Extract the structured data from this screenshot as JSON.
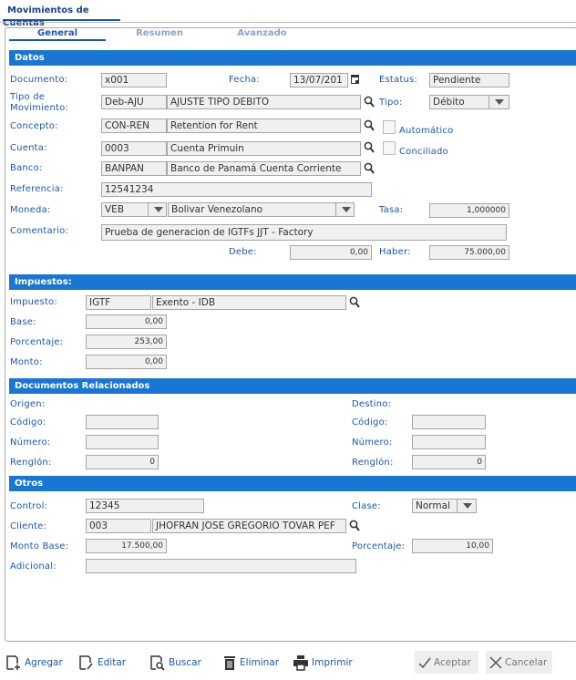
{
  "window": {
    "tab": "Movimientos de Cuentas"
  },
  "tabs": [
    {
      "label": "General",
      "active": true
    },
    {
      "label": "Resumen"
    },
    {
      "label": "Avanzado"
    }
  ],
  "datos": {
    "title": "Datos",
    "documento": {
      "label": "Documento:",
      "value": "x001"
    },
    "fecha": {
      "label": "Fecha:",
      "value": "13/07/201"
    },
    "estatus": {
      "label": "Estatus:",
      "value": "Pendiente"
    },
    "tipo_mov": {
      "label1": "Tipo de",
      "label2": "Movimiento:",
      "code": "Deb-AJU",
      "desc": "AJUSTE TIPO DEBITO"
    },
    "tipo": {
      "label": "Tipo:",
      "value": "Débito"
    },
    "concepto": {
      "label": "Concepto:",
      "code": "CON-REN",
      "desc": "Retention for Rent"
    },
    "automatico": {
      "label": "Automático",
      "checked": false
    },
    "cuenta": {
      "label": "Cuenta:",
      "code": "0003",
      "desc": "Cuenta Primuin"
    },
    "conciliado": {
      "label": "Conciliado",
      "checked": false
    },
    "banco": {
      "label": "Banco:",
      "code": "BANPAN",
      "desc": "Banco de Panamá Cuenta Corriente"
    },
    "referencia": {
      "label": "Referencia:",
      "value": "12541234"
    },
    "moneda": {
      "label": "Moneda:",
      "code": "VEB",
      "desc": "Bolivar Venezolano"
    },
    "tasa": {
      "label": "Tasa:",
      "value": "1,000000"
    },
    "comentario": {
      "label": "Comentario:",
      "value": "Prueba de generacion de IGTFs JJT - Factory"
    },
    "debe": {
      "label": "Debe:",
      "value": "0,00"
    },
    "haber": {
      "label": "Haber:",
      "value": "75.000,00"
    }
  },
  "impuestos": {
    "title": "Impuestos:",
    "impuesto": {
      "label": "Impuesto:",
      "code": "IGTF",
      "desc": "Exento - IDB"
    },
    "base": {
      "label": "Base:",
      "value": "0,00"
    },
    "porcentaje": {
      "label": "Porcentaje:",
      "value": "253,00"
    },
    "monto": {
      "label": "Monto:",
      "value": "0,00"
    }
  },
  "docs": {
    "title": "Documentos Relacionados",
    "origen": "Origen:",
    "destino": "Destino:",
    "codigo": "Código:",
    "numero": "Número:",
    "renglon": "Renglón:",
    "origen_codigo": "",
    "origen_numero": "",
    "origen_renglon": "0",
    "destino_codigo": "",
    "destino_numero": "",
    "destino_renglon": "0"
  },
  "otros": {
    "title": "Otros",
    "control": {
      "label": "Control:",
      "value": "12345"
    },
    "clase": {
      "label": "Clase:",
      "value": "Normal"
    },
    "cliente": {
      "label": "Cliente:",
      "code": "003",
      "desc": "JHOFRAN JOSE GREGORIO TOVAR PEF"
    },
    "monto_base": {
      "label": "Monto Base:",
      "value": "17.500,00"
    },
    "porcentaje": {
      "label": "Porcentaje:",
      "value": "10,00"
    },
    "adicional": {
      "label": "Adicional:",
      "value": ""
    }
  },
  "toolbar": {
    "agregar": "Agregar",
    "editar": "Editar",
    "buscar": "Buscar",
    "eliminar": "Eliminar",
    "imprimir": "Imprimir",
    "aceptar": "Aceptar",
    "cancelar": "Cancelar"
  },
  "colors": {
    "accent": "#1976d2",
    "label": "#1a56b0"
  }
}
